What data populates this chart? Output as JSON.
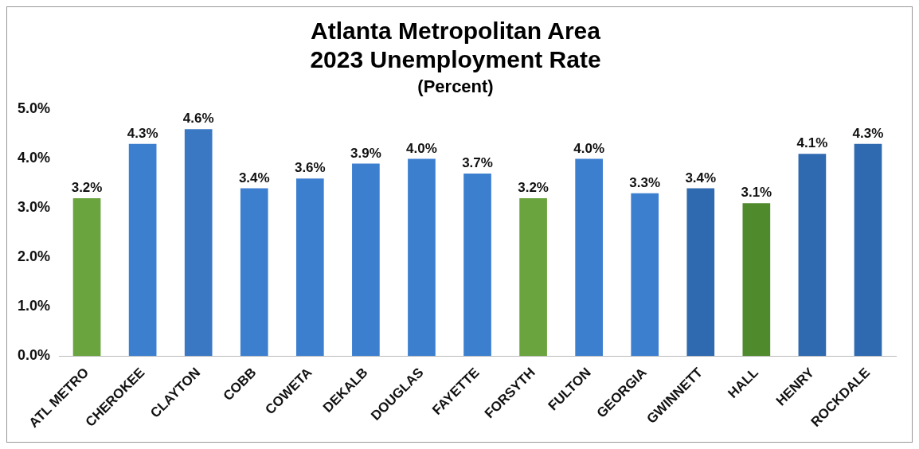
{
  "chart_data": {
    "type": "bar",
    "title": [
      "Atlanta Metropolitan Area",
      "2023 Unemployment Rate"
    ],
    "subtitle": "(Percent)",
    "categories": [
      "ATL METRO",
      "CHEROKEE",
      "CLAYTON",
      "COBB",
      "COWETA",
      "DEKALB",
      "DOUGLAS",
      "FAYETTE",
      "FORSYTH",
      "FULTON",
      "GEORGIA",
      "GWINNETT",
      "HALL",
      "HENRY",
      "ROCKDALE"
    ],
    "values": [
      3.2,
      4.3,
      4.6,
      3.4,
      3.6,
      3.9,
      4.0,
      3.7,
      3.2,
      4.0,
      3.3,
      3.4,
      3.1,
      4.1,
      4.3
    ],
    "value_labels": [
      "3.2%",
      "4.3%",
      "4.6%",
      "3.4%",
      "3.6%",
      "3.9%",
      "4.0%",
      "3.7%",
      "3.2%",
      "4.0%",
      "3.3%",
      "3.4%",
      "3.1%",
      "4.1%",
      "4.3%"
    ],
    "colors": [
      "#6aa43e",
      "#3c7fcf",
      "#3a78c4",
      "#3c7fcf",
      "#3c7fcf",
      "#3c7fcf",
      "#3c7fcf",
      "#3c7fcf",
      "#6aa43e",
      "#3c7fcf",
      "#3c7fcf",
      "#2f69b0",
      "#4f8a2c",
      "#2f69b0",
      "#2f69b0"
    ],
    "ylim": [
      0,
      5
    ],
    "yticks": [
      {
        "value": 0,
        "label": "0.0%"
      },
      {
        "value": 1,
        "label": "1.0%"
      },
      {
        "value": 2,
        "label": "2.0%"
      },
      {
        "value": 3,
        "label": "3.0%"
      },
      {
        "value": 4,
        "label": "4.0%"
      },
      {
        "value": 5,
        "label": "5.0%"
      }
    ],
    "grid": false,
    "legend": false
  }
}
